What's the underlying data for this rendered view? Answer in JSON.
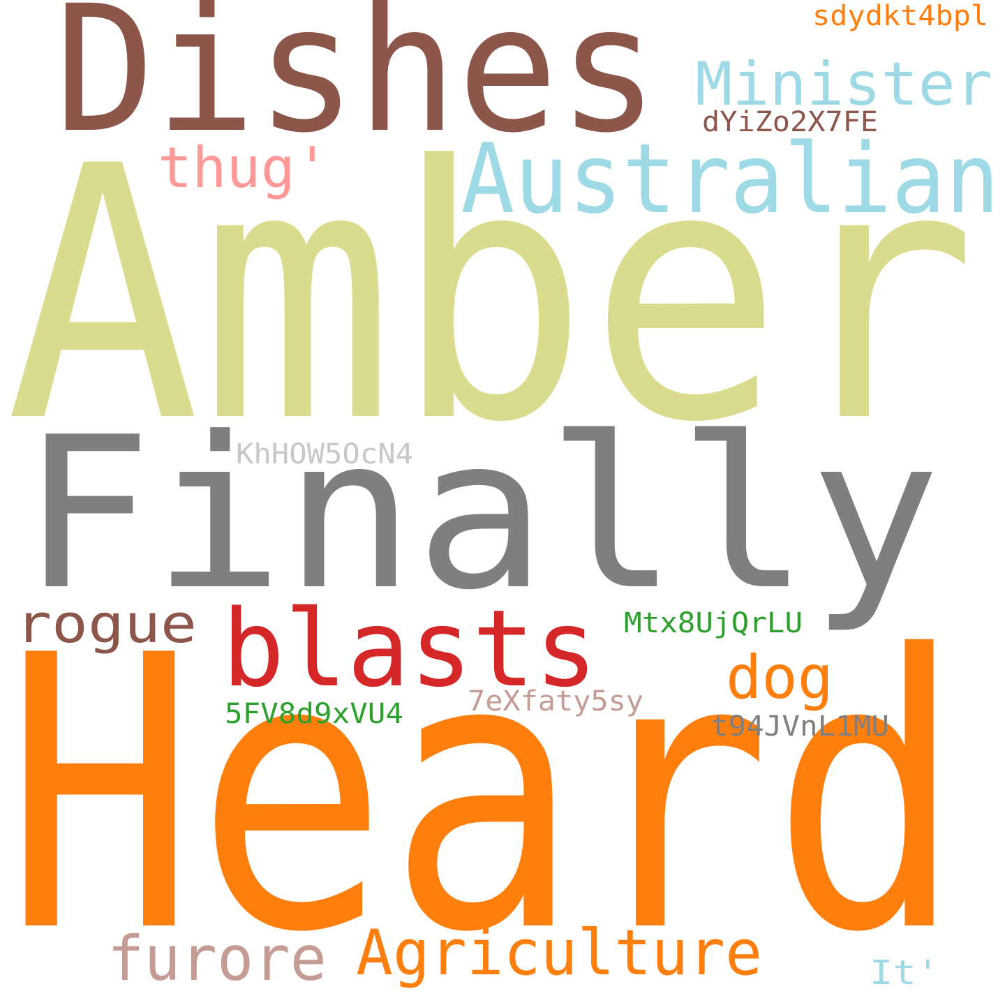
{
  "words": [
    {
      "text": "Heard",
      "color": "#ff7f0e"
    },
    {
      "text": "Amber",
      "color": "#dbdb8d"
    },
    {
      "text": "Finally",
      "color": "#7f7f7f"
    },
    {
      "text": "Dishes",
      "color": "#8c564b"
    },
    {
      "text": "Australian",
      "color": "#9edae5"
    },
    {
      "text": "blasts",
      "color": "#d62728"
    },
    {
      "text": "Minister",
      "color": "#9edae5"
    },
    {
      "text": "Agriculture",
      "color": "#ff7f0e"
    },
    {
      "text": "furore",
      "color": "#c49c94"
    },
    {
      "text": "rogue",
      "color": "#8c564b"
    },
    {
      "text": "thug'",
      "color": "#ff9896"
    },
    {
      "text": "dog",
      "color": "#ff7f0e"
    },
    {
      "text": "It'",
      "color": "#9edae5"
    },
    {
      "text": "dYiZo2X7FE",
      "color": "#8c564b"
    },
    {
      "text": "KhHOW5OcN4",
      "color": "#c7c7c7"
    },
    {
      "text": "Mtx8UjQrLU",
      "color": "#2ca02c"
    },
    {
      "text": "7eXfaty5sy",
      "color": "#c49c94"
    },
    {
      "text": "5FV8d9xVU4",
      "color": "#2ca02c"
    },
    {
      "text": "t94JVnL1MU",
      "color": "#7f7f7f"
    },
    {
      "text": "sdydkt4bpl",
      "color": "#ff7f0e"
    }
  ]
}
